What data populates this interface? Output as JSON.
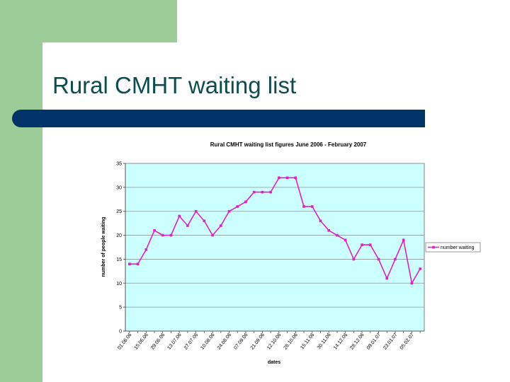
{
  "slide": {
    "title": "Rural CMHT waiting list"
  },
  "colors": {
    "sidebar": "#9ccc98",
    "rule": "#003366",
    "title": "#0d4d4d",
    "plot_background": "#ccffff",
    "series": "#e020c8"
  },
  "chart_data": {
    "type": "line",
    "title": "Rural CMHT waiting list figures June 2006 - February 2007",
    "xlabel": "dates",
    "ylabel": "number of people waiting",
    "ylim": [
      0,
      35
    ],
    "yticks": [
      0,
      5,
      10,
      15,
      20,
      25,
      30,
      35
    ],
    "grid": true,
    "legend_position": "right",
    "categories": [
      "01.06.06",
      "",
      "15.06.06",
      "",
      "29.06.06",
      "",
      "13.07.06",
      "",
      "27.07.06",
      "",
      "10.08.06",
      "",
      "24.08.06",
      "",
      "07.09.06",
      "",
      "21.09.06",
      "",
      "12.10.06",
      "",
      "26.10.06",
      "",
      "15.11.06",
      "",
      "30.11.06",
      "",
      "14.12.06",
      "",
      "28.12.06",
      "",
      "09.01.07",
      "",
      "23.01.07",
      "",
      "05.02.07",
      ""
    ],
    "series": [
      {
        "name": "number waiting",
        "values": [
          14,
          14,
          17,
          21,
          20,
          20,
          24,
          22,
          25,
          23,
          20,
          22,
          25,
          26,
          27,
          29,
          29,
          29,
          32,
          32,
          32,
          26,
          26,
          23,
          21,
          20,
          19,
          15,
          18,
          18,
          15,
          11,
          15,
          19,
          10,
          13
        ]
      }
    ]
  }
}
